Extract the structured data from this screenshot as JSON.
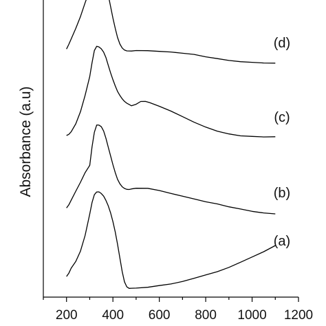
{
  "chart_data": {
    "type": "line",
    "title": "",
    "xlabel": "",
    "ylabel": "Absorbance (a.u)",
    "xlim": [
      100,
      1200
    ],
    "x_ticks": [
      "200",
      "400",
      "600",
      "800",
      "1000",
      "1200"
    ],
    "y_ticks_shown": false,
    "grid": false,
    "legend": "none",
    "series": [
      {
        "name": "(a)",
        "x": [
          200,
          210,
          220,
          240,
          260,
          280,
          300,
          310,
          320,
          330,
          340,
          350,
          360,
          370,
          380,
          390,
          400,
          410,
          420,
          430,
          440,
          450,
          460,
          470,
          480,
          500,
          550,
          600,
          650,
          700,
          750,
          800,
          850,
          900,
          950,
          1000,
          1050,
          1100
        ],
        "y": [
          0.12,
          0.16,
          0.22,
          0.3,
          0.42,
          0.6,
          0.85,
          0.98,
          1.07,
          1.1,
          1.1,
          1.08,
          1.05,
          1.0,
          0.94,
          0.86,
          0.76,
          0.64,
          0.5,
          0.34,
          0.18,
          0.06,
          0.0,
          -0.02,
          -0.02,
          -0.02,
          -0.01,
          0.01,
          0.03,
          0.06,
          0.1,
          0.14,
          0.18,
          0.23,
          0.29,
          0.35,
          0.41,
          0.48
        ]
      },
      {
        "name": "(b)",
        "x": [
          200,
          210,
          220,
          240,
          260,
          280,
          300,
          310,
          320,
          330,
          340,
          350,
          360,
          370,
          380,
          390,
          400,
          410,
          420,
          430,
          440,
          450,
          460,
          470,
          480,
          500,
          550,
          600,
          650,
          700,
          750,
          800,
          850,
          900,
          950,
          1000,
          1050,
          1100
        ],
        "y": [
          0.08,
          0.12,
          0.18,
          0.3,
          0.42,
          0.55,
          0.65,
          0.9,
          1.1,
          1.2,
          1.2,
          1.18,
          1.12,
          1.02,
          0.9,
          0.78,
          0.66,
          0.55,
          0.46,
          0.4,
          0.36,
          0.34,
          0.33,
          0.33,
          0.34,
          0.35,
          0.35,
          0.32,
          0.28,
          0.24,
          0.2,
          0.16,
          0.13,
          0.09,
          0.06,
          0.03,
          0.01,
          0.0
        ]
      },
      {
        "name": "(c)",
        "x": [
          200,
          210,
          220,
          240,
          260,
          280,
          300,
          310,
          320,
          330,
          340,
          350,
          360,
          370,
          380,
          390,
          400,
          410,
          420,
          430,
          440,
          450,
          460,
          480,
          500,
          520,
          540,
          560,
          600,
          650,
          700,
          750,
          800,
          850,
          900,
          950,
          1000,
          1050,
          1100
        ],
        "y": [
          0.02,
          0.04,
          0.08,
          0.2,
          0.38,
          0.62,
          0.9,
          1.1,
          1.28,
          1.34,
          1.33,
          1.3,
          1.25,
          1.17,
          1.06,
          0.95,
          0.85,
          0.76,
          0.68,
          0.62,
          0.57,
          0.53,
          0.5,
          0.46,
          0.48,
          0.52,
          0.52,
          0.5,
          0.45,
          0.38,
          0.3,
          0.22,
          0.15,
          0.09,
          0.05,
          0.02,
          0.01,
          0.0,
          0.0
        ]
      },
      {
        "name": "(d)",
        "x": [
          200,
          210,
          220,
          240,
          260,
          280,
          300,
          310,
          320,
          330,
          340,
          350,
          360,
          370,
          380,
          390,
          400,
          410,
          420,
          430,
          440,
          450,
          460,
          480,
          500,
          550,
          600,
          650,
          700,
          750,
          800,
          850,
          900,
          950,
          1000,
          1050,
          1100
        ],
        "y": [
          0.25,
          0.32,
          0.4,
          0.56,
          0.74,
          0.95,
          1.15,
          1.3,
          1.45,
          1.56,
          1.58,
          1.52,
          1.4,
          1.25,
          1.08,
          0.9,
          0.72,
          0.56,
          0.42,
          0.32,
          0.26,
          0.23,
          0.22,
          0.22,
          0.23,
          0.23,
          0.22,
          0.21,
          0.19,
          0.17,
          0.13,
          0.1,
          0.07,
          0.05,
          0.04,
          0.03,
          0.03
        ]
      }
    ]
  }
}
